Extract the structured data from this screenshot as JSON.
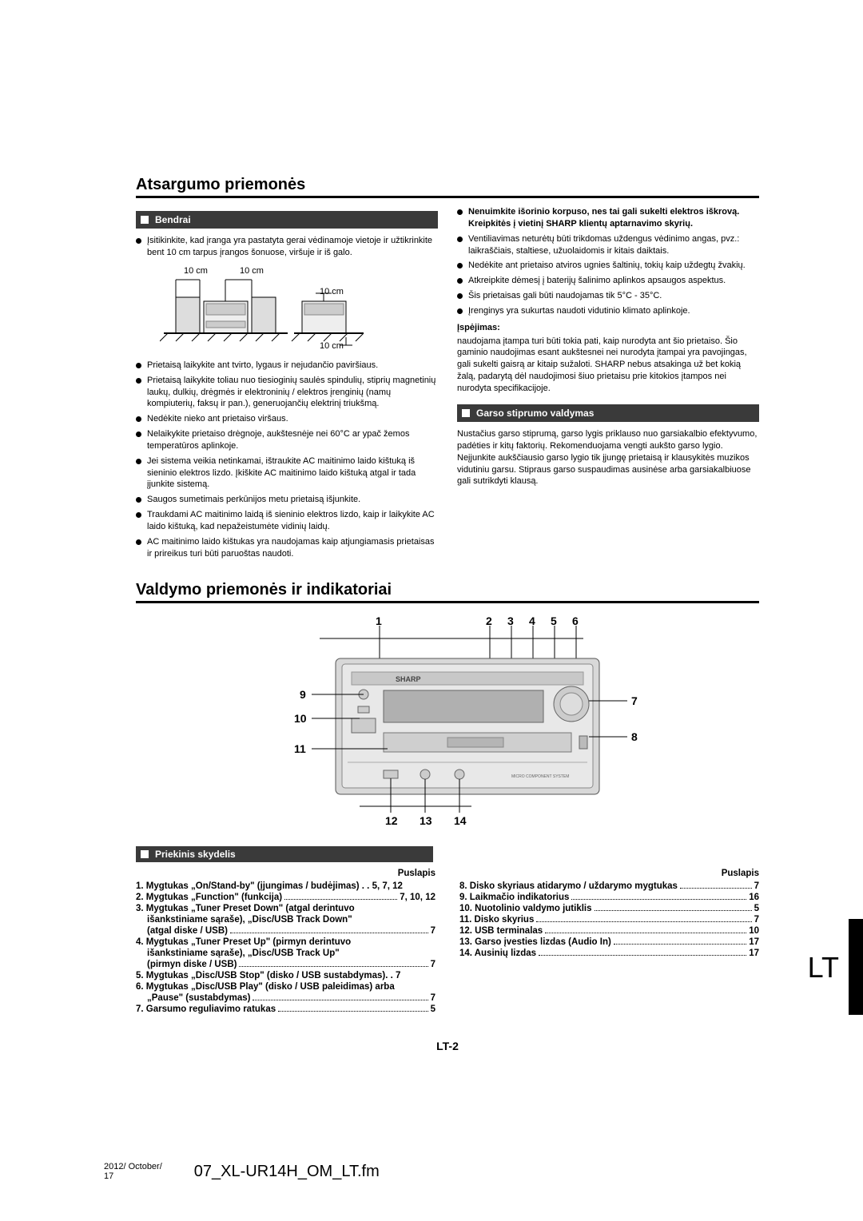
{
  "title1": "Atsargumo priemonės",
  "sec_general": "Bendrai",
  "left_bullets_top": [
    "Įsitikinkite, kad įranga yra pastatyta gerai vėdinamoje vietoje ir užtikrinkite bent 10 cm tarpus įrangos šonuose, viršuje ir iš galo."
  ],
  "spacing_labels": {
    "a": "10 cm",
    "b": "10 cm",
    "c": "10 cm",
    "d": "10 cm"
  },
  "left_bullets_bottom": [
    "Prietaisą laikykite ant tvirto, lygaus ir nejudančio paviršiaus.",
    "Prietaisą laikykite toliau nuo tiesioginių saulės spindulių, stiprių magnetinių laukų, dulkių, drėgmės ir elektroninių / elektros įrenginių (namų kompiuterių, faksų ir pan.), generuojančių elektrinį triukšmą.",
    "Nedėkite nieko ant prietaiso viršaus.",
    "Nelaikykite prietaiso drėgnoje, aukštesnėje nei 60°C ar ypač žemos temperatūros aplinkoje.",
    "Jei sistema veikia netinkamai, ištraukite AC maitinimo laido kištuką iš sieninio elektros lizdo. Įkiškite AC maitinimo laido kištuką atgal ir tada įjunkite sistemą.",
    "Saugos sumetimais perkūnijos metu prietaisą išjunkite.",
    "Traukdami AC maitinimo laidą iš sieninio elektros lizdo, kaip ir laikykite AC laido kištuką, kad nepažeistumėte vidinių laidų.",
    "AC maitinimo laido kištukas yra naudojamas kaip atjungiamasis prietaisas ir prireikus turi būti paruoštas naudoti."
  ],
  "right_bullets": [
    {
      "bold": true,
      "text": "Nenuimkite išorinio korpuso, nes tai gali sukelti elektros iškrovą. Kreipkitės į vietinį SHARP klientų aptarnavimo skyrių."
    },
    {
      "text": "Ventiliavimas neturėtų būti trikdomas uždengus vėdinimo angas, pvz.: laikraščiais, staltiese, užuolaidomis ir kitais daiktais."
    },
    {
      "text": "Nedėkite ant prietaiso atviros ugnies šaltinių, tokių kaip uždegtų žvakių."
    },
    {
      "text": "Atkreipkite dėmesį į baterijų šalinimo aplinkos apsaugos aspektus."
    },
    {
      "text": "Šis prietaisas gali būti naudojamas tik 5°C - 35°C."
    },
    {
      "text": "Įrenginys yra sukurtas naudoti vidutinio klimato aplinkoje."
    }
  ],
  "warn_title": "Įspėjimas:",
  "warn_body": "naudojama įtampa turi būti tokia pati, kaip nurodyta ant šio prietaiso. Šio gaminio naudojimas esant aukštesnei nei nurodyta įtampai yra pavojingas, gali sukelti gaisrą ar kitaip sužaloti. SHARP nebus atsakinga už bet kokią žalą, padarytą dėl naudojimosi šiuo prietaisu prie kitokios įtampos nei nurodyta specifikacijoje.",
  "sec_volume": "Garso stiprumo valdymas",
  "volume_body": "Nustačius garso stiprumą, garso lygis priklauso nuo garsiakalbio efektyvumo, padėties ir kitų faktorių. Rekomenduojama vengti aukšto garso lygio. Neįjunkite aukščiausio garso lygio tik įjungę prietaisą ir klausykitės muzikos vidutiniu garsu. Stipraus garso suspaudimas ausinėse arba garsiakalbiuose gali sutrikdyti klausą.",
  "title2": "Valdymo priemonės ir indikatoriai",
  "callouts": {
    "1": "1",
    "2": "2",
    "3": "3",
    "4": "4",
    "5": "5",
    "6": "6",
    "7": "7",
    "8": "8",
    "9": "9",
    "10": "10",
    "11": "11",
    "12": "12",
    "13": "13",
    "14": "14"
  },
  "sec_front": "Priekinis skydelis",
  "page_label": "Puslapis",
  "index_left": [
    {
      "t": "1. Mygtukas „On/Stand-by\" (įjungimas / budėjimas) . .",
      "p": "5, 7, 12"
    },
    {
      "t": "2. Mygtukas „Function\" (funkcija)",
      "p": "7, 10, 12",
      "dots": true
    },
    {
      "t": "3. Mygtukas „Tuner Preset Down\" (atgal derintuvo",
      "cont": true
    },
    {
      "t": "išankstiniame sąraše), „Disc/USB Track Down\"",
      "sub": true,
      "cont": true
    },
    {
      "t": "(atgal diske / USB)",
      "sub": true,
      "p": "7",
      "dots": true
    },
    {
      "t": "4. Mygtukas „Tuner Preset Up\" (pirmyn derintuvo",
      "cont": true
    },
    {
      "t": "išankstiniame sąraše), „Disc/USB Track Up\"",
      "sub": true,
      "cont": true
    },
    {
      "t": "(pirmyn diske / USB)",
      "sub": true,
      "p": "7",
      "dots": true
    },
    {
      "t": "5. Mygtukas „Disc/USB Stop\" (disko / USB sustabdymas). .",
      "p": "7"
    },
    {
      "t": "6. Mygtukas „Disc/USB Play\" (disko / USB paleidimas) arba",
      "cont": true
    },
    {
      "t": "„Pause\" (sustabdymas)",
      "sub": true,
      "p": "7",
      "dots": true
    },
    {
      "t": "7. Garsumo reguliavimo ratukas",
      "p": "5",
      "dots": true
    }
  ],
  "index_right": [
    {
      "t": "8. Disko skyriaus atidarymo / uždarymo mygtukas",
      "p": "7",
      "dots": true
    },
    {
      "t": "9. Laikmačio indikatorius",
      "p": "16",
      "dots": true
    },
    {
      "t": "10. Nuotolinio valdymo jutiklis",
      "p": "5",
      "dots": true
    },
    {
      "t": "11. Disko skyrius",
      "p": "7",
      "dots": true
    },
    {
      "t": "12. USB terminalas",
      "p": "10",
      "dots": true
    },
    {
      "t": "13. Garso įvesties lizdas (Audio In)",
      "p": "17",
      "dots": true
    },
    {
      "t": "14. Ausinių lizdas",
      "p": "17",
      "dots": true
    }
  ],
  "page_num": "LT-2",
  "side_lt": "LT",
  "footer_date": "2012/ October/\n17",
  "footer_file": "07_XL-UR14H_OM_LT.fm",
  "colors": {
    "hdr_bg": "#3a3a3a",
    "text": "#000000"
  }
}
